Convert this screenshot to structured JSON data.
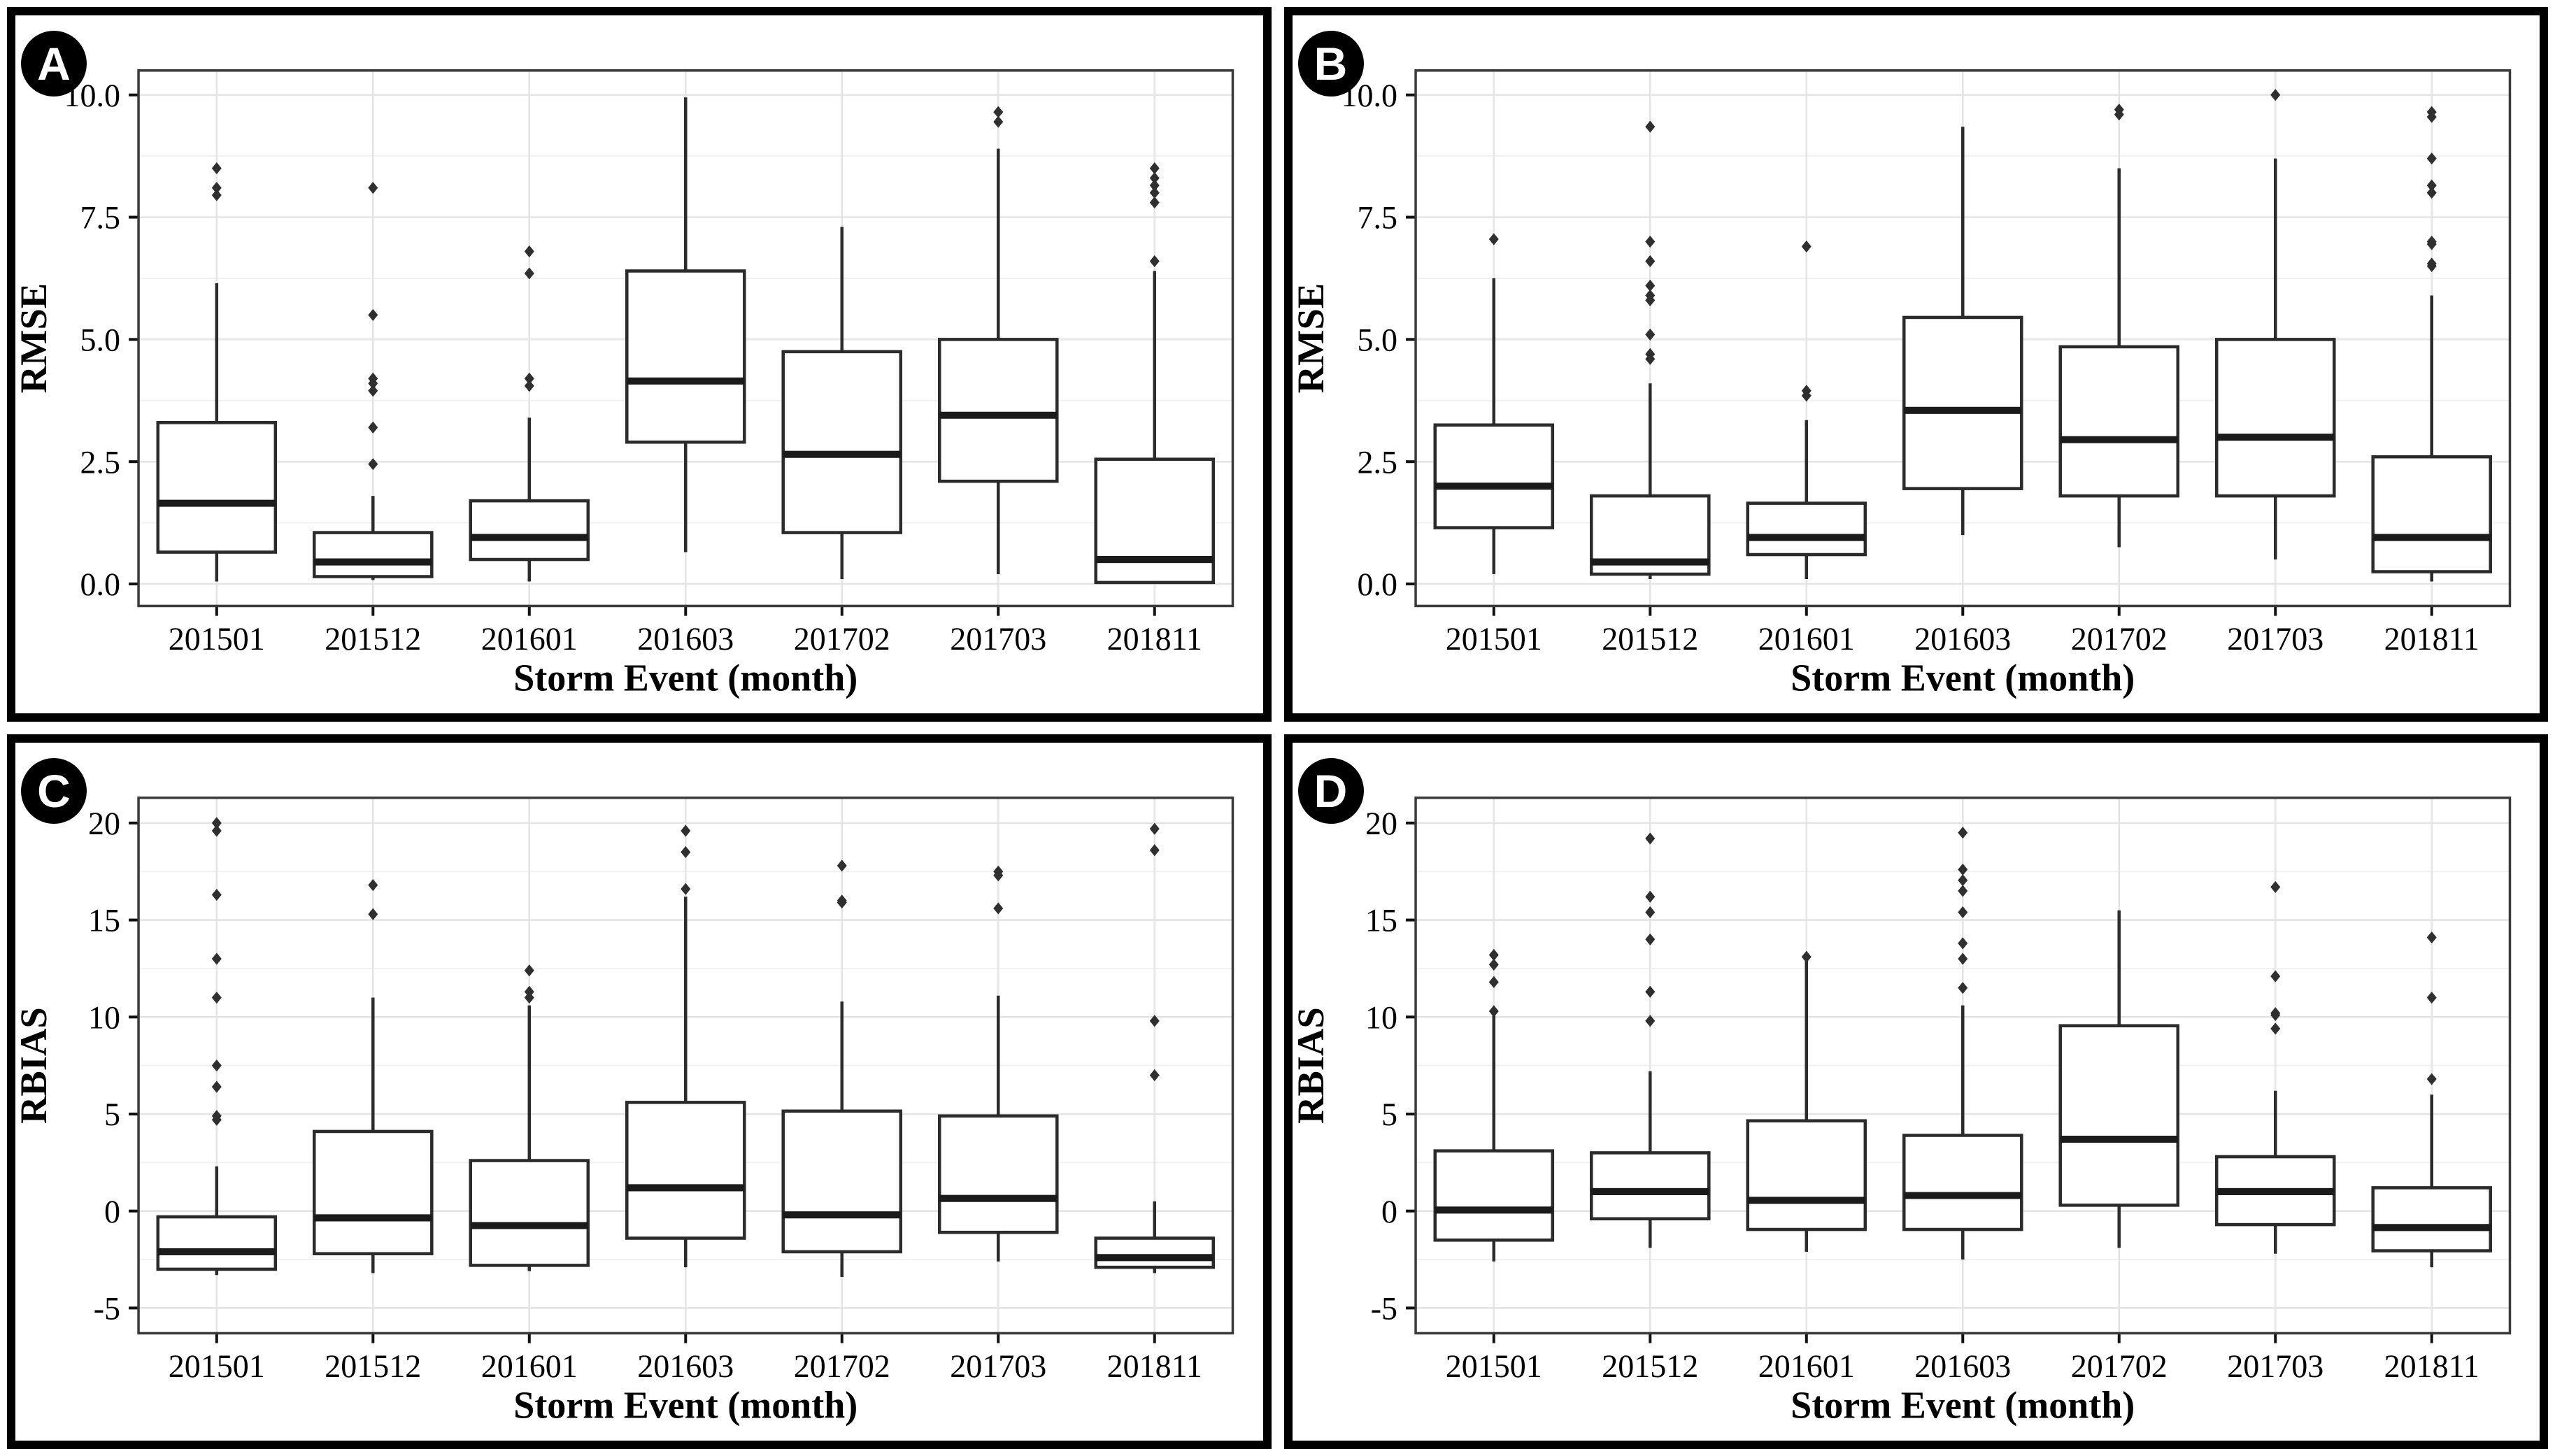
{
  "figure": {
    "description": "Four-panel boxplot figure of model error metrics by storm event",
    "x_axis_title": "Storm Event (month)",
    "panel_labels": [
      "A",
      "B",
      "C",
      "D"
    ]
  },
  "chart_data": [
    {
      "panel_label": "A",
      "type": "boxplot",
      "xlabel": "Storm Event (month)",
      "ylabel": "RMSE",
      "categories": [
        "201501",
        "201512",
        "201601",
        "201603",
        "201702",
        "201703",
        "201811"
      ],
      "ytick_values": [
        0,
        2.5,
        5,
        7.5,
        10
      ],
      "ytick_labels": [
        "0.0",
        "2.5",
        "5.0",
        "7.5",
        "10.0"
      ],
      "ylim": [
        -0.45,
        10.5
      ],
      "grid": "major+minor horizontal, major vertical at categories",
      "legend": "none",
      "boxes": [
        {
          "category": "201501",
          "whislo": 0.05,
          "q1": 0.65,
          "med": 1.65,
          "q3": 3.3,
          "whishi": 6.15,
          "outliers": [
            7.95,
            8.1,
            8.5
          ]
        },
        {
          "category": "201512",
          "whislo": 0.08,
          "q1": 0.15,
          "med": 0.45,
          "q3": 1.05,
          "whishi": 1.8,
          "outliers": [
            2.45,
            3.2,
            3.95,
            4.1,
            4.2,
            5.5,
            8.1
          ]
        },
        {
          "category": "201601",
          "whislo": 0.05,
          "q1": 0.5,
          "med": 0.95,
          "q3": 1.7,
          "whishi": 3.4,
          "outliers": [
            4.05,
            4.2,
            6.35,
            6.8
          ]
        },
        {
          "category": "201603",
          "whislo": 0.65,
          "q1": 2.9,
          "med": 4.15,
          "q3": 6.4,
          "whishi": 9.95,
          "outliers": []
        },
        {
          "category": "201702",
          "whislo": 0.1,
          "q1": 1.05,
          "med": 2.65,
          "q3": 4.75,
          "whishi": 7.3,
          "outliers": []
        },
        {
          "category": "201703",
          "whislo": 0.2,
          "q1": 2.1,
          "med": 3.45,
          "q3": 5.0,
          "whishi": 8.9,
          "outliers": [
            9.45,
            9.65
          ]
        },
        {
          "category": "201811",
          "whislo": 0.0,
          "q1": 0.03,
          "med": 0.5,
          "q3": 2.55,
          "whishi": 6.4,
          "outliers": [
            6.6,
            7.8,
            8.0,
            8.15,
            8.3,
            8.5
          ]
        }
      ]
    },
    {
      "panel_label": "B",
      "type": "boxplot",
      "xlabel": "Storm Event (month)",
      "ylabel": "RMSE",
      "categories": [
        "201501",
        "201512",
        "201601",
        "201603",
        "201702",
        "201703",
        "201811"
      ],
      "ytick_values": [
        0,
        2.5,
        5,
        7.5,
        10
      ],
      "ytick_labels": [
        "0.0",
        "2.5",
        "5.0",
        "7.5",
        "10.0"
      ],
      "ylim": [
        -0.45,
        10.5
      ],
      "grid": "major+minor horizontal, major vertical at categories",
      "legend": "none",
      "boxes": [
        {
          "category": "201501",
          "whislo": 0.2,
          "q1": 1.15,
          "med": 2.0,
          "q3": 3.25,
          "whishi": 6.25,
          "outliers": [
            7.05
          ]
        },
        {
          "category": "201512",
          "whislo": 0.1,
          "q1": 0.2,
          "med": 0.45,
          "q3": 1.8,
          "whishi": 4.1,
          "outliers": [
            4.6,
            4.7,
            5.1,
            5.8,
            5.9,
            6.1,
            6.6,
            7.0,
            9.35
          ]
        },
        {
          "category": "201601",
          "whislo": 0.1,
          "q1": 0.6,
          "med": 0.95,
          "q3": 1.65,
          "whishi": 3.35,
          "outliers": [
            3.85,
            3.95,
            6.9
          ]
        },
        {
          "category": "201603",
          "whislo": 1.0,
          "q1": 1.95,
          "med": 3.55,
          "q3": 5.45,
          "whishi": 9.35,
          "outliers": []
        },
        {
          "category": "201702",
          "whislo": 0.75,
          "q1": 1.8,
          "med": 2.95,
          "q3": 4.85,
          "whishi": 8.5,
          "outliers": [
            9.6,
            9.7
          ]
        },
        {
          "category": "201703",
          "whislo": 0.5,
          "q1": 1.8,
          "med": 3.0,
          "q3": 5.0,
          "whishi": 8.7,
          "outliers": [
            10.0
          ]
        },
        {
          "category": "201811",
          "whislo": 0.05,
          "q1": 0.25,
          "med": 0.95,
          "q3": 2.6,
          "whishi": 5.9,
          "outliers": [
            6.5,
            6.55,
            6.95,
            7.0,
            8.0,
            8.15,
            8.7,
            9.55,
            9.65
          ]
        }
      ]
    },
    {
      "panel_label": "C",
      "type": "boxplot",
      "xlabel": "Storm Event (month)",
      "ylabel": "RBIAS",
      "categories": [
        "201501",
        "201512",
        "201601",
        "201603",
        "201702",
        "201703",
        "201811"
      ],
      "ytick_values": [
        -5,
        0,
        5,
        10,
        15,
        20
      ],
      "ytick_labels": [
        "-5",
        "0",
        "5",
        "10",
        "15",
        "20"
      ],
      "ylim": [
        -6.3,
        21.3
      ],
      "grid": "major+minor horizontal, major vertical at categories",
      "legend": "none",
      "boxes": [
        {
          "category": "201501",
          "whislo": -3.3,
          "q1": -3.0,
          "med": -2.1,
          "q3": -0.3,
          "whishi": 2.3,
          "outliers": [
            4.7,
            4.9,
            6.4,
            7.5,
            11.0,
            13.0,
            16.3,
            19.6,
            20.0
          ]
        },
        {
          "category": "201512",
          "whislo": -3.2,
          "q1": -2.2,
          "med": -0.35,
          "q3": 4.1,
          "whishi": 11.0,
          "outliers": [
            15.3,
            16.8
          ]
        },
        {
          "category": "201601",
          "whislo": -3.1,
          "q1": -2.8,
          "med": -0.75,
          "q3": 2.6,
          "whishi": 10.6,
          "outliers": [
            11.0,
            11.3,
            12.4
          ]
        },
        {
          "category": "201603",
          "whislo": -2.9,
          "q1": -1.4,
          "med": 1.2,
          "q3": 5.6,
          "whishi": 16.2,
          "outliers": [
            16.6,
            18.5,
            19.6
          ]
        },
        {
          "category": "201702",
          "whislo": -3.4,
          "q1": -2.1,
          "med": -0.2,
          "q3": 5.15,
          "whishi": 10.8,
          "outliers": [
            15.9,
            16.0,
            17.8
          ]
        },
        {
          "category": "201703",
          "whislo": -2.6,
          "q1": -1.1,
          "med": 0.65,
          "q3": 4.9,
          "whishi": 11.1,
          "outliers": [
            15.6,
            17.3,
            17.5
          ]
        },
        {
          "category": "201811",
          "whislo": -3.2,
          "q1": -2.9,
          "med": -2.4,
          "q3": -1.4,
          "whishi": 0.5,
          "outliers": [
            7.0,
            9.8,
            18.6,
            19.7
          ]
        }
      ]
    },
    {
      "panel_label": "D",
      "type": "boxplot",
      "xlabel": "Storm Event (month)",
      "ylabel": "RBIAS",
      "categories": [
        "201501",
        "201512",
        "201601",
        "201603",
        "201702",
        "201703",
        "201811"
      ],
      "ytick_values": [
        -5,
        0,
        5,
        10,
        15,
        20
      ],
      "ytick_labels": [
        "-5",
        "0",
        "5",
        "10",
        "15",
        "20"
      ],
      "ylim": [
        -6.3,
        21.3
      ],
      "grid": "major+minor horizontal, major vertical at categories",
      "legend": "none",
      "boxes": [
        {
          "category": "201501",
          "whislo": -2.6,
          "q1": -1.5,
          "med": 0.05,
          "q3": 3.1,
          "whishi": 10.1,
          "outliers": [
            10.3,
            11.8,
            12.7,
            13.2
          ]
        },
        {
          "category": "201512",
          "whislo": -1.9,
          "q1": -0.4,
          "med": 1.0,
          "q3": 3.0,
          "whishi": 7.2,
          "outliers": [
            9.8,
            11.3,
            14.0,
            15.4,
            16.2,
            19.2
          ]
        },
        {
          "category": "201601",
          "whislo": -2.1,
          "q1": -0.95,
          "med": 0.55,
          "q3": 4.65,
          "whishi": 12.95,
          "outliers": [
            13.1
          ]
        },
        {
          "category": "201603",
          "whislo": -2.5,
          "q1": -0.95,
          "med": 0.8,
          "q3": 3.9,
          "whishi": 10.6,
          "outliers": [
            11.5,
            13.0,
            13.8,
            15.4,
            16.5,
            17.05,
            17.6,
            19.5
          ]
        },
        {
          "category": "201702",
          "whislo": -1.9,
          "q1": 0.3,
          "med": 3.7,
          "q3": 9.55,
          "whishi": 15.5,
          "outliers": []
        },
        {
          "category": "201703",
          "whislo": -2.2,
          "q1": -0.7,
          "med": 1.0,
          "q3": 2.8,
          "whishi": 6.2,
          "outliers": [
            9.4,
            10.1,
            10.2,
            12.1,
            16.7
          ]
        },
        {
          "category": "201811",
          "whislo": -2.9,
          "q1": -2.05,
          "med": -0.85,
          "q3": 1.2,
          "whishi": 6.0,
          "outliers": [
            6.8,
            11.0,
            14.1
          ]
        }
      ]
    }
  ],
  "style": {
    "accent_black": "#000000",
    "panel_border_color": "#3a3a3a",
    "box_stroke_color": "#2b2b2b",
    "median_color": "#1b1b1b",
    "outlier_color": "#2f2f2f",
    "major_grid_color": "#e5e5e5",
    "minor_grid_color": "#f1f1f1",
    "badge_bg": "#000000",
    "badge_fg": "#ffffff"
  }
}
